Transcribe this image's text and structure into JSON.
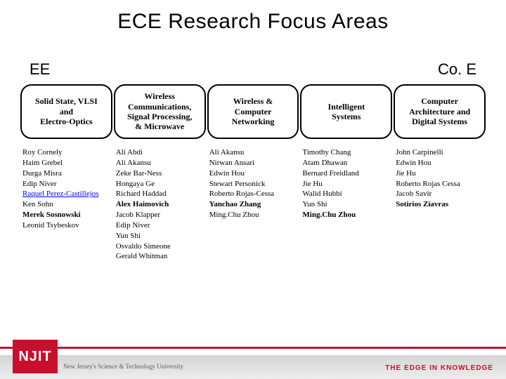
{
  "title": "ECE Research Focus Areas",
  "left_header": "EE",
  "right_header": "Co. E",
  "boxes": [
    {
      "label": "Solid State, VLSI\nand\nElectro-Optics"
    },
    {
      "label": "Wireless\nCommunications,\nSignal Processing,\n& Microwave"
    },
    {
      "label": "Wireless &\nComputer\nNetworking"
    },
    {
      "label": "Intelligent\nSystems"
    },
    {
      "label": "Computer\nArchitecture and\nDigital Systems"
    }
  ],
  "people": [
    [
      {
        "t": "Roy Cornely"
      },
      {
        "t": "Haim Grebel"
      },
      {
        "t": "Durga Misra"
      },
      {
        "t": "Edip Niver"
      },
      {
        "t": "Raquel Perez-Castillejos",
        "link": true
      },
      {
        "t": " Ken Sohn"
      },
      {
        "t": "Merek Sosnowski",
        "bold": true
      },
      {
        "t": "Leonid Tsybeskov"
      }
    ],
    [
      {
        "t": "Ali Abdi"
      },
      {
        "t": "Ali Akansu"
      },
      {
        "t": "Zeke Bar-Ness"
      },
      {
        "t": "Hongaya Ge"
      },
      {
        "t": "Richard Haddad"
      },
      {
        "t": "Alex Haimovich",
        "bold": true
      },
      {
        "t": "Jacob Klapper"
      },
      {
        "t": "Edip Niver"
      },
      {
        "t": "Yun Shi"
      },
      {
        "t": "Osvaldo Simeone"
      },
      {
        "t": "Gerald Whitman"
      }
    ],
    [
      {
        "t": "Ali Akansu"
      },
      {
        "t": "Nirwan Ansari"
      },
      {
        "t": "Edwin Hou"
      },
      {
        "t": "Stewart Personick"
      },
      {
        "t": "Roberto Rojas-Cessa"
      },
      {
        "t": "Yanchao Zhang",
        "bold": true
      },
      {
        "t": "Ming.Chu Zhou"
      }
    ],
    [
      {
        "t": "Timothy Chang"
      },
      {
        "t": "Atam Dhawan"
      },
      {
        "t": "Bernard Freidland"
      },
      {
        "t": "Jie Hu"
      },
      {
        "t": "Walid Hubbi"
      },
      {
        "t": "Yun Shi"
      },
      {
        "t": "Ming.Chu Zhou",
        "bold": true
      }
    ],
    [
      {
        "t": "John Carpinelli"
      },
      {
        "t": "Edwin Hou"
      },
      {
        "t": "Jie Hu"
      },
      {
        "t": "Roberto Rojas Cessa"
      },
      {
        "t": "Jacob Savir"
      },
      {
        "t": "Sotirios Ziavras",
        "bold": true
      }
    ]
  ],
  "logo": {
    "text": "NJIT",
    "subtitle": "New Jersey's Science & Technology University"
  },
  "tagline": "THE EDGE IN KNOWLEDGE",
  "colors": {
    "accent": "#c8102e",
    "background": "#ffffff",
    "text": "#000000"
  }
}
